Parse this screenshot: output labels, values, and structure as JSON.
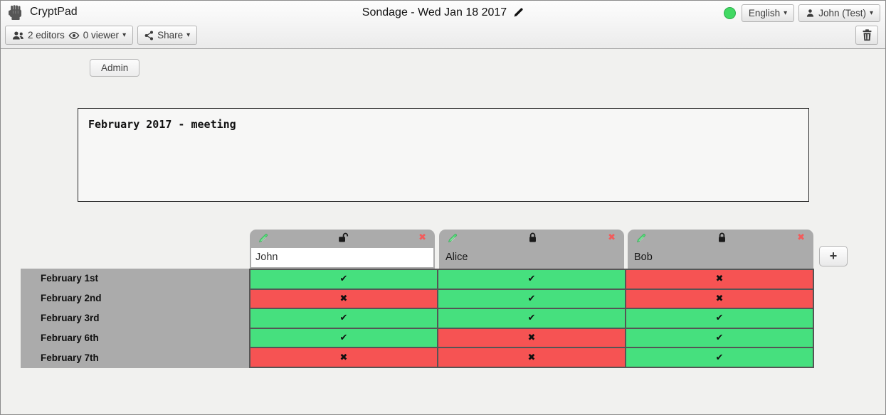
{
  "topbar": {
    "app_name": "CryptPad",
    "title": "Sondage - Wed Jan 18 2017",
    "status_color": "#41d963",
    "language_label": "English",
    "user_label": "John (Test)"
  },
  "toolbar": {
    "editors_label": "2 editors",
    "viewers_label": "0 viewer",
    "share_label": "Share"
  },
  "admin_button_label": "Admin",
  "description": "February 2017 - meeting",
  "poll": {
    "columns": [
      {
        "name": "John",
        "editable": true,
        "locked": false
      },
      {
        "name": "Alice",
        "editable": false,
        "locked": true
      },
      {
        "name": "Bob",
        "editable": false,
        "locked": true
      }
    ],
    "add_column_label": "+",
    "rows": [
      {
        "label": "February 1st",
        "votes": [
          "yes",
          "yes",
          "no"
        ]
      },
      {
        "label": "February 2nd",
        "votes": [
          "no",
          "yes",
          "no"
        ]
      },
      {
        "label": "February 3rd",
        "votes": [
          "yes",
          "yes",
          "yes"
        ]
      },
      {
        "label": "February 6th",
        "votes": [
          "yes",
          "no",
          "yes"
        ]
      },
      {
        "label": "February 7th",
        "votes": [
          "no",
          "no",
          "yes"
        ]
      }
    ],
    "yes_glyph": "✔",
    "no_glyph": "✖",
    "yes_color": "#46e07e",
    "no_color": "#f65353",
    "header_color": "#ababab",
    "delete_glyph": "✖"
  }
}
